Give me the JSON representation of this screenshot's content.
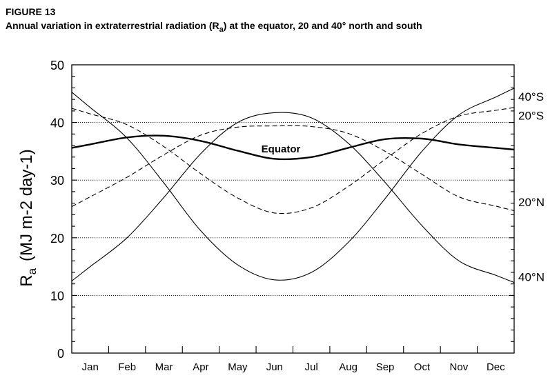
{
  "figure": {
    "label": "FIGURE 13",
    "title_pre": "Annual variation in extraterrestrial radiation (R",
    "title_sub": "a",
    "title_post": ") at the equator, 20 and 40° north and south"
  },
  "chart_data": {
    "type": "line",
    "categories": [
      "Jan",
      "Feb",
      "Mar",
      "Apr",
      "May",
      "Jun",
      "Jul",
      "Aug",
      "Sep",
      "Oct",
      "Nov",
      "Dec"
    ],
    "ylabel_main": "R",
    "ylabel_sub": "a",
    "ylabel_units": "(MJ m-2 day-1)",
    "ylim": [
      0,
      50
    ],
    "yticks": [
      0,
      10,
      20,
      30,
      40,
      50
    ],
    "grid": "dotted horizontal at 10, 20, 30, 40",
    "series": [
      {
        "name": "40°S",
        "style": "solid",
        "values": [
          42.6,
          37.3,
          29.5,
          21.2,
          15.3,
          12.7,
          14.0,
          19.2,
          26.8,
          35.0,
          41.3,
          44.4
        ]
      },
      {
        "name": "20°S",
        "style": "dashed",
        "values": [
          41.5,
          39.6,
          35.8,
          31.1,
          26.9,
          24.3,
          25.2,
          28.9,
          33.6,
          38.1,
          41.1,
          42.1
        ]
      },
      {
        "name": "Equator",
        "style": "thick",
        "values": [
          36.2,
          37.4,
          37.7,
          36.8,
          35.1,
          33.7,
          34.0,
          35.6,
          37.1,
          37.2,
          36.2,
          35.6
        ]
      },
      {
        "name": "20°N",
        "style": "dashed",
        "values": [
          27.1,
          30.5,
          34.4,
          37.8,
          39.2,
          39.4,
          39.3,
          38.1,
          35.0,
          31.0,
          27.1,
          25.5
        ]
      },
      {
        "name": "40°N",
        "style": "solid",
        "values": [
          15.0,
          20.0,
          27.0,
          34.6,
          40.0,
          41.7,
          40.8,
          36.4,
          29.6,
          22.1,
          16.0,
          13.5
        ]
      }
    ],
    "legend_labels": [
      "40°S",
      "20°S",
      "20°N",
      "40°N"
    ],
    "annotation": "Equator"
  }
}
